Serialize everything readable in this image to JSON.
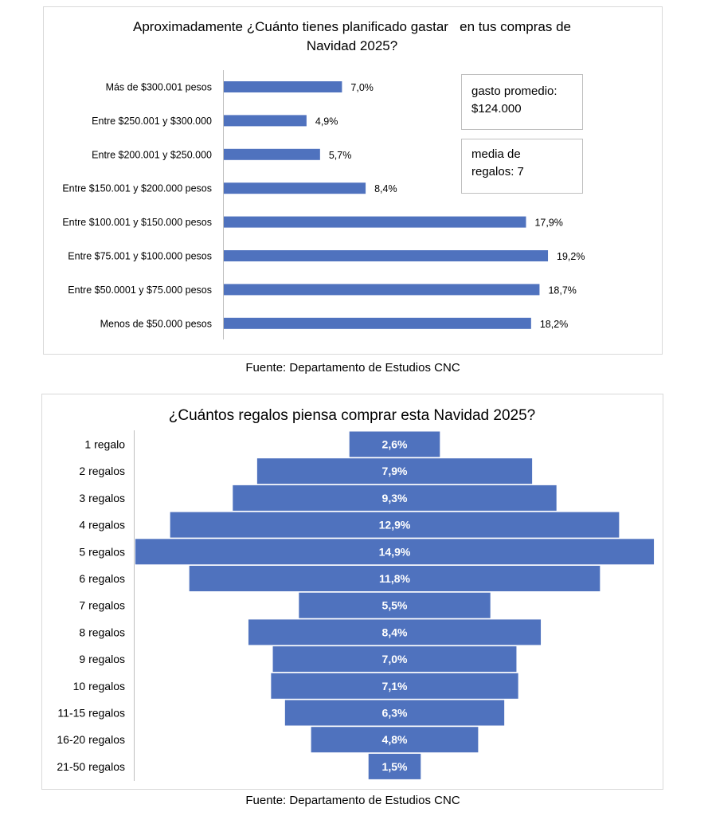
{
  "chart_data": [
    {
      "type": "bar",
      "orientation": "horizontal",
      "title_line1": "Aproximadamente ¿Cuánto tienes planificado gastar   en tus compras de",
      "title_line2": "Navidad 2025?",
      "categories": [
        "Más de $300.001 pesos",
        "Entre $250.001 y $300.000",
        "Entre $200.001 y $250.000",
        "Entre $150.001 y $200.000 pesos",
        "Entre $100.001 y $150.000 pesos",
        "Entre $75.001 y $100.000 pesos",
        "Entre $50.0001 y $75.000 pesos",
        "Menos de $50.000 pesos"
      ],
      "values": [
        7.0,
        4.9,
        5.7,
        8.4,
        17.9,
        19.2,
        18.7,
        18.2
      ],
      "labels": [
        "7,0%",
        "4,9%",
        "5,7%",
        "8,4%",
        "17,9%",
        "19,2%",
        "18,7%",
        "18,2%"
      ],
      "annotations": [
        {
          "line1": "gasto promedio:",
          "line2": "$124.000"
        },
        {
          "line1": "media de",
          "line2": "regalos: 7"
        }
      ],
      "source": "Fuente: Departamento de Estudios CNC",
      "bar_color": "#4f72be"
    },
    {
      "type": "bar",
      "orientation": "funnel",
      "title": "¿Cuántos regalos piensa comprar esta Navidad 2025?",
      "categories": [
        "1 regalo",
        "2 regalos",
        "3 regalos",
        "4 regalos",
        "5 regalos",
        "6 regalos",
        "7 regalos",
        "8 regalos",
        "9 regalos",
        "10 regalos",
        "11-15 regalos",
        "16-20 regalos",
        "21-50 regalos"
      ],
      "values": [
        2.6,
        7.9,
        9.3,
        12.9,
        14.9,
        11.8,
        5.5,
        8.4,
        7.0,
        7.1,
        6.3,
        4.8,
        1.5
      ],
      "labels": [
        "2,6%",
        "7,9%",
        "9,3%",
        "12,9%",
        "14,9%",
        "11,8%",
        "5,5%",
        "8,4%",
        "7,0%",
        "7,1%",
        "6,3%",
        "4,8%",
        "1,5%"
      ],
      "source": "Fuente: Departamento de Estudios CNC",
      "bar_color": "#4f72be"
    }
  ]
}
